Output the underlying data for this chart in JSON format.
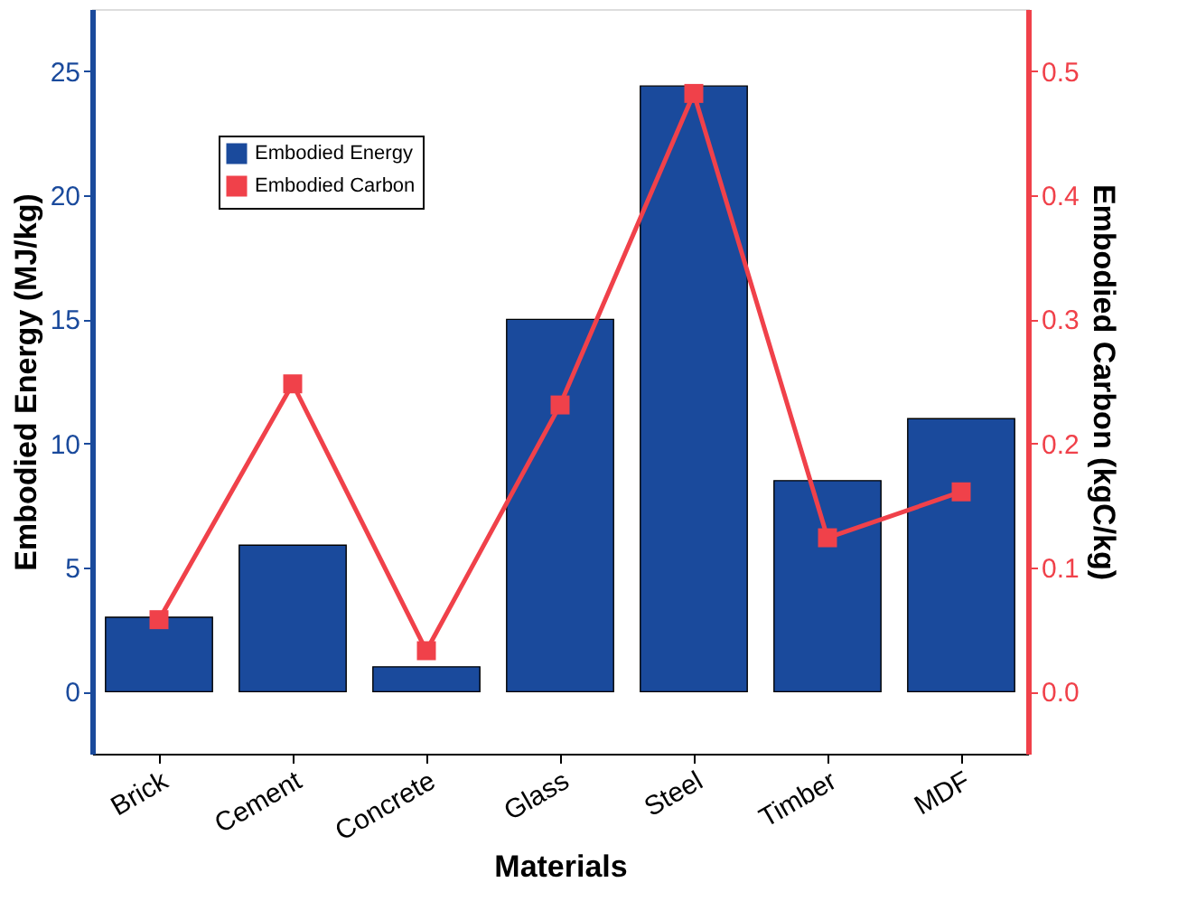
{
  "chart_data": {
    "type": "bar",
    "xlabel": "Materials",
    "ylabel": "Embodied Energy (MJ/kg)",
    "y2label": "Embodied Carbon (kgC/kg)",
    "categories": [
      "Brick",
      "Cement",
      "Concrete",
      "Glass",
      "Steel",
      "Timber",
      "MDF"
    ],
    "series": [
      {
        "name": "Embodied Energy",
        "color": "#1a4a9c",
        "values": [
          3,
          5.9,
          1,
          15,
          24.4,
          8.5,
          11
        ]
      },
      {
        "name": "Embodied Carbon",
        "type": "line",
        "axis": "y2",
        "color": "#f0414a",
        "marker": "square",
        "values": [
          0.058,
          0.248,
          0.033,
          0.231,
          0.482,
          0.124,
          0.161
        ]
      }
    ],
    "ylim": [
      -2.5,
      27.5
    ],
    "yticks": [
      0,
      5,
      10,
      15,
      20,
      25
    ],
    "y2lim": [
      -0.05,
      0.55
    ],
    "y2ticks": [
      {
        "value": 0,
        "label": "0.0"
      },
      {
        "value": 0.1,
        "label": "0.1"
      },
      {
        "value": 0.2,
        "label": "0.2"
      },
      {
        "value": 0.3,
        "label": "0.3"
      },
      {
        "value": 0.4,
        "label": "0.4"
      },
      {
        "value": 0.5,
        "label": "0.5"
      }
    ],
    "legend": "top left",
    "grid": false
  }
}
